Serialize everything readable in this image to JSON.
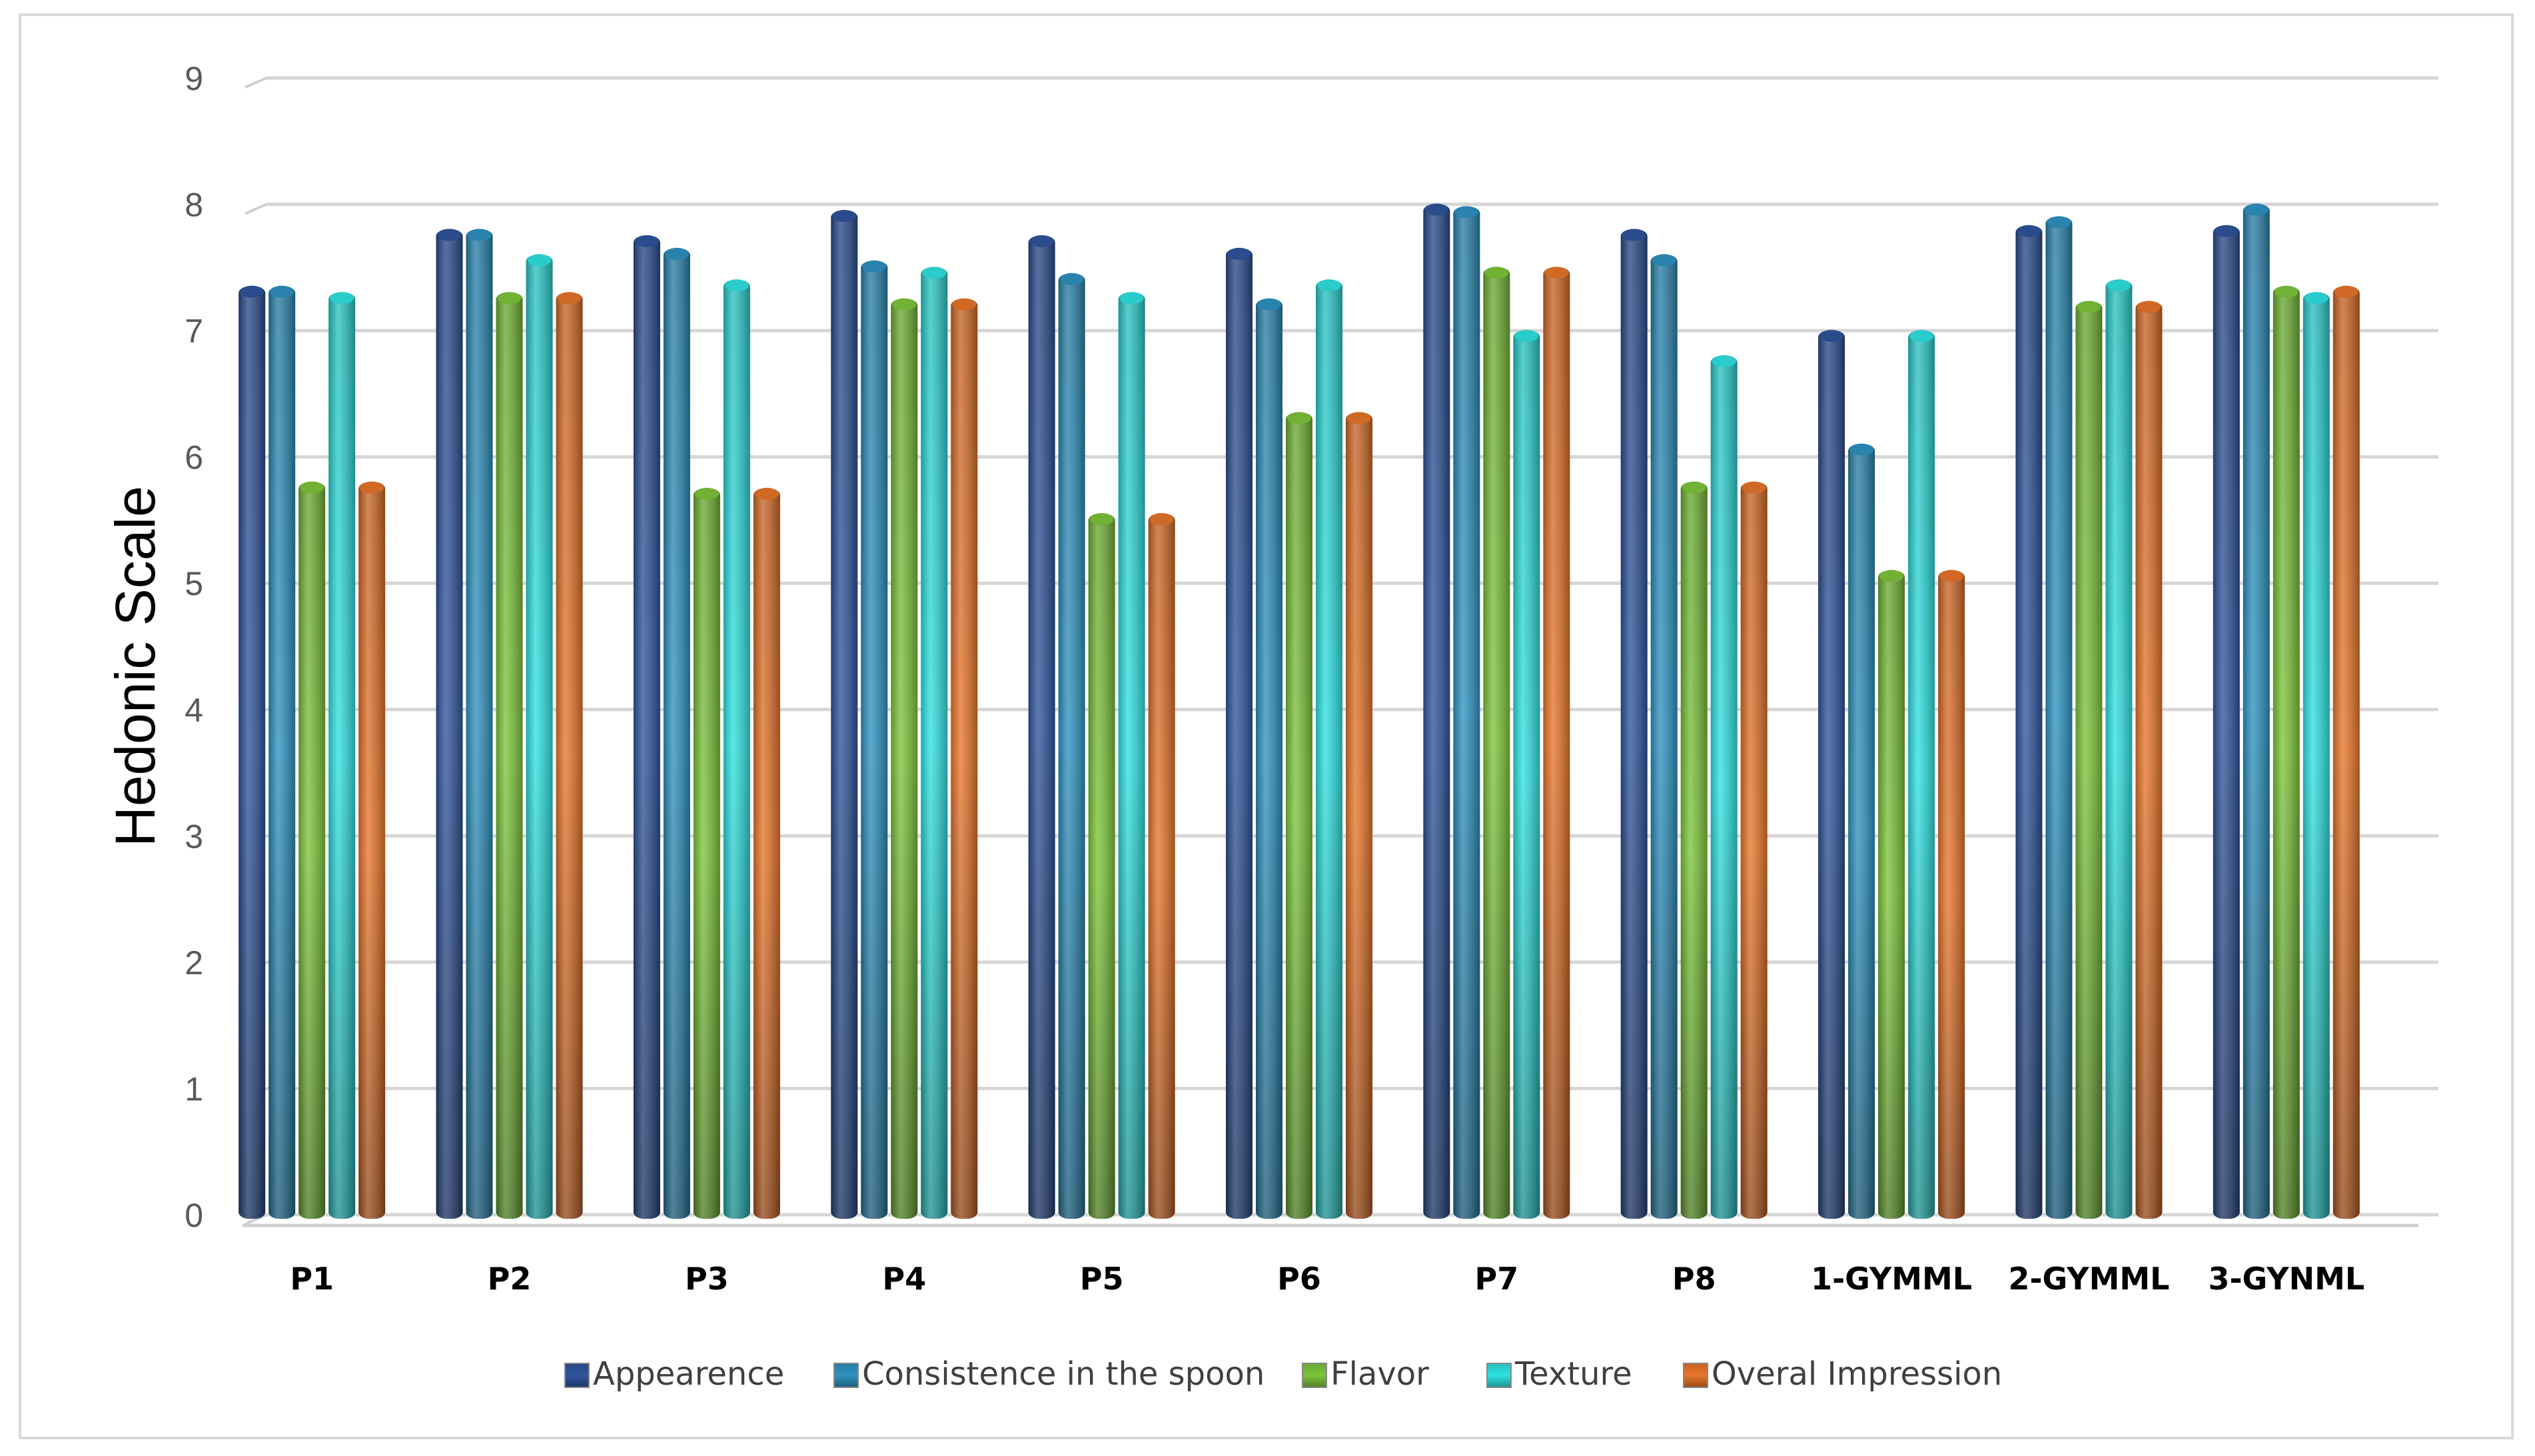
{
  "chart_data": {
    "type": "bar",
    "title": "",
    "xlabel": "",
    "ylabel": "Hedonic Scale",
    "ylim": [
      0,
      9
    ],
    "yticks": [
      "0",
      "1",
      "2",
      "3",
      "4",
      "5",
      "6",
      "7",
      "8",
      "9"
    ],
    "grid": true,
    "legend_position": "bottom",
    "categories": [
      "P1",
      "P2",
      "P3",
      "P4",
      "P5",
      "P6",
      "P7",
      "P8",
      "1-GYMML",
      "2-GYMML",
      "3-GYNML"
    ],
    "series": [
      {
        "name": "Appearence",
        "color": "#2f549c",
        "values": [
          7.35,
          7.8,
          7.75,
          7.95,
          7.75,
          7.65,
          8.0,
          7.8,
          7.0,
          7.83,
          7.83
        ]
      },
      {
        "name": "Consistence in the spoon",
        "color": "#2e92c0",
        "values": [
          7.35,
          7.8,
          7.65,
          7.55,
          7.45,
          7.25,
          7.98,
          7.6,
          6.1,
          7.9,
          8.0
        ]
      },
      {
        "name": "Flavor",
        "color": "#7dc53a",
        "values": [
          5.8,
          7.3,
          5.75,
          7.25,
          5.55,
          6.35,
          7.5,
          5.8,
          5.1,
          7.23,
          7.35
        ]
      },
      {
        "name": "Texture",
        "color": "#2fe1e1",
        "values": [
          7.3,
          7.6,
          7.4,
          7.5,
          7.3,
          7.4,
          7.0,
          6.8,
          7.0,
          7.4,
          7.3
        ]
      },
      {
        "name": "Overal Impression",
        "color": "#e8752a",
        "values": [
          5.8,
          7.3,
          5.75,
          7.25,
          5.55,
          6.35,
          7.5,
          5.8,
          5.1,
          7.23,
          7.35
        ]
      }
    ]
  }
}
